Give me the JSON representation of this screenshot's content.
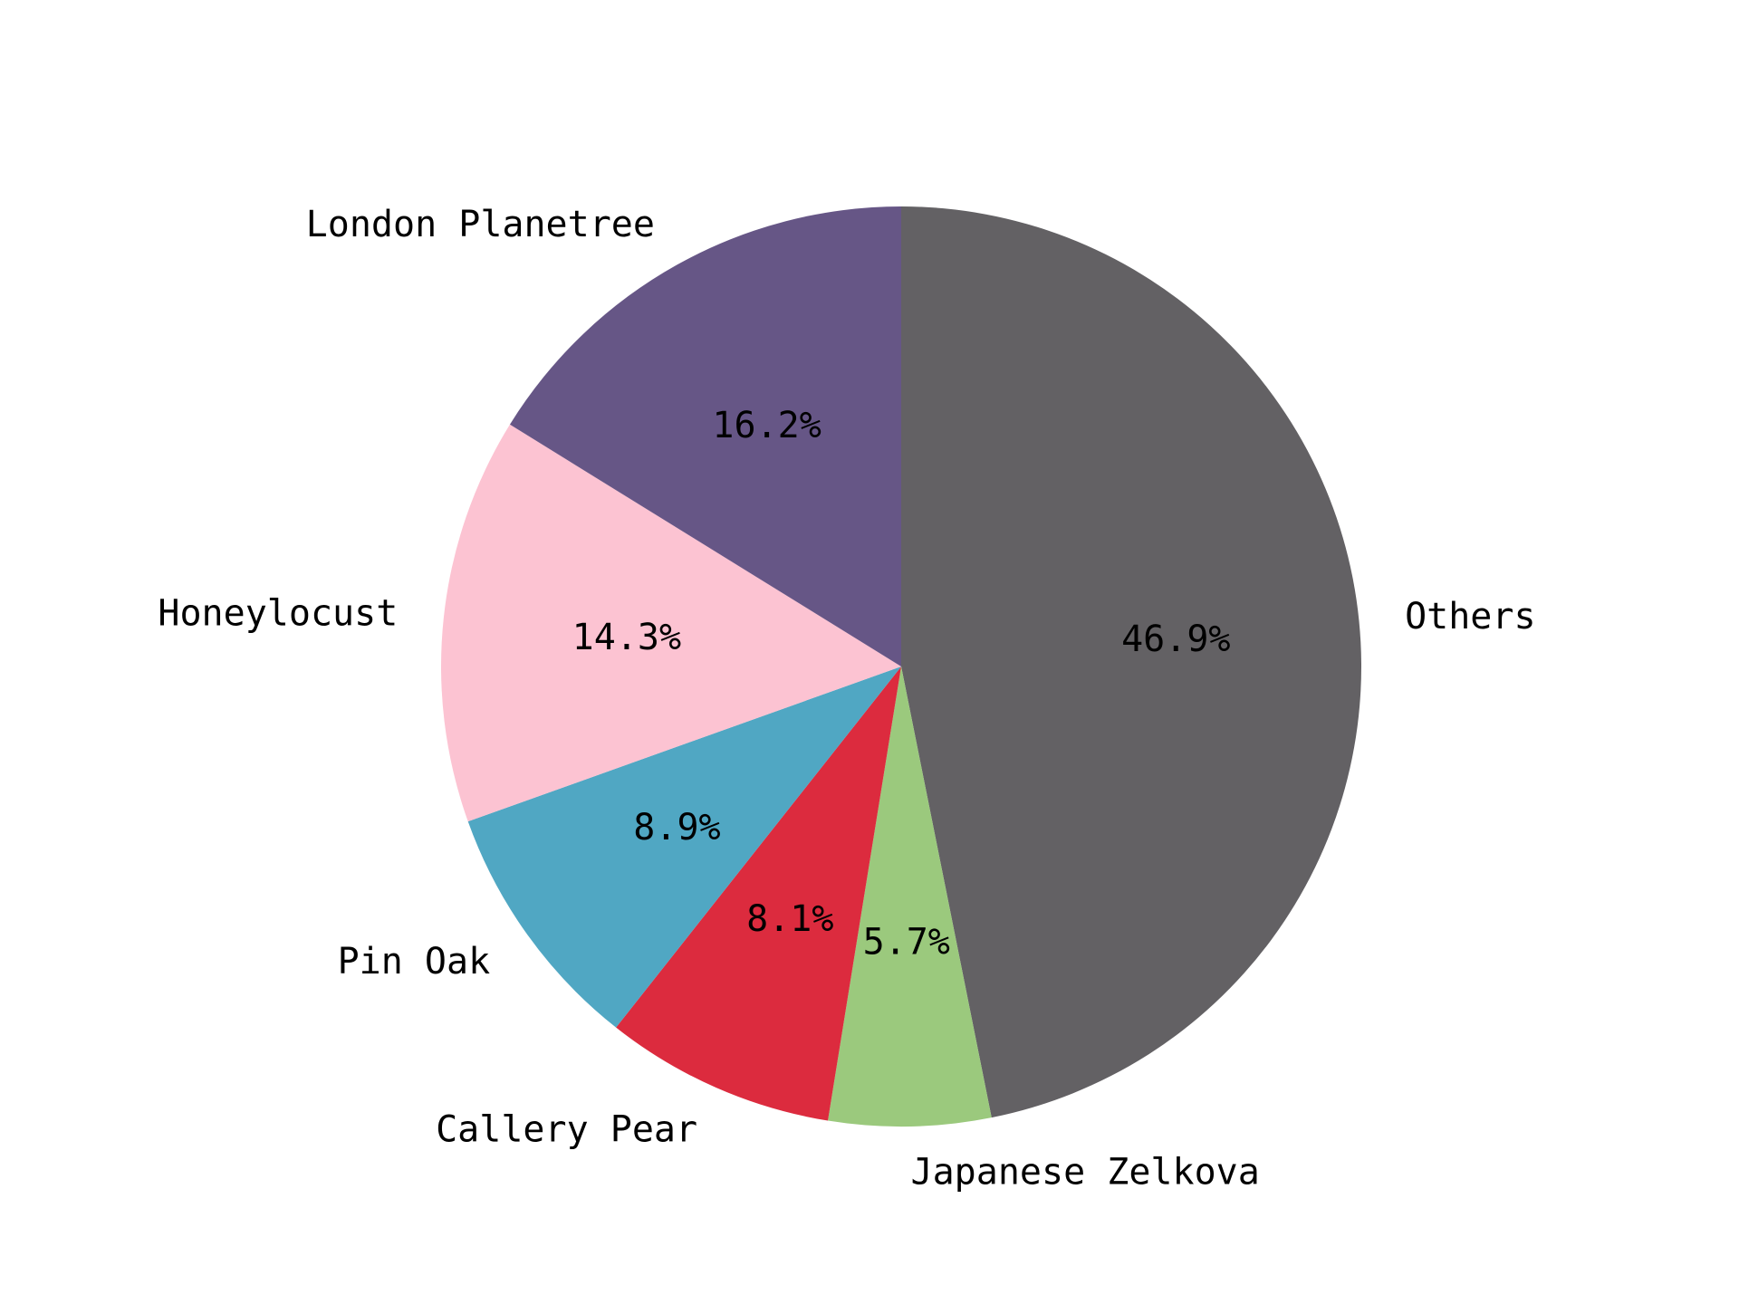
{
  "chart_data": {
    "type": "pie",
    "start": "top",
    "direction": "clockwise",
    "slices": [
      {
        "label": "Others",
        "value": 46.9,
        "pct_text": "46.9%",
        "color": "#636164"
      },
      {
        "label": "Japanese Zelkova",
        "value": 5.7,
        "pct_text": "5.7%",
        "color": "#9bc97d"
      },
      {
        "label": "Callery Pear",
        "value": 8.1,
        "pct_text": "8.1%",
        "color": "#dc2b3e"
      },
      {
        "label": "Pin Oak",
        "value": 8.9,
        "pct_text": "8.9%",
        "color": "#50a7c3"
      },
      {
        "label": "Honeylocust",
        "value": 14.3,
        "pct_text": "14.3%",
        "color": "#fcc3d2"
      },
      {
        "label": "London Planetree",
        "value": 16.2,
        "pct_text": "16.2%",
        "color": "#665686"
      }
    ]
  }
}
